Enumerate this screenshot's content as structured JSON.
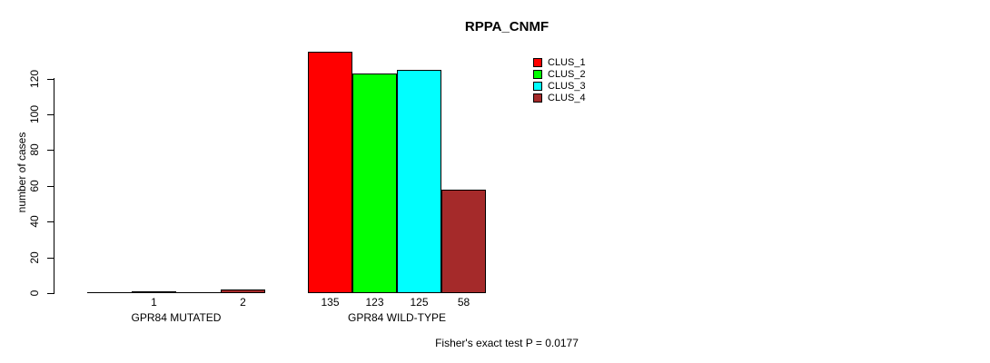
{
  "chart_data": {
    "type": "bar",
    "title": "RPPA_CNMF",
    "ylabel": "number of cases",
    "xlabel": "",
    "categories": [
      "GPR84 MUTATED",
      "GPR84 WILD-TYPE"
    ],
    "series": [
      {
        "name": "CLUS_1",
        "color": "#FF0000",
        "values": [
          0,
          135
        ]
      },
      {
        "name": "CLUS_2",
        "color": "#00FF00",
        "values": [
          1,
          123
        ]
      },
      {
        "name": "CLUS_3",
        "color": "#00FFFF",
        "values": [
          0,
          125
        ]
      },
      {
        "name": "CLUS_4",
        "color": "#A52A2A",
        "values": [
          2,
          58
        ]
      }
    ],
    "bar_count_labels": [
      [
        "",
        "1",
        "",
        "2"
      ],
      [
        "135",
        "123",
        "125",
        "58"
      ]
    ],
    "yticks": [
      0,
      20,
      40,
      60,
      80,
      100,
      120
    ],
    "ylim": [
      0,
      135
    ],
    "grid": false,
    "legend_position": "top-right",
    "annotation": "Fisher's exact test P = 0.0177"
  }
}
